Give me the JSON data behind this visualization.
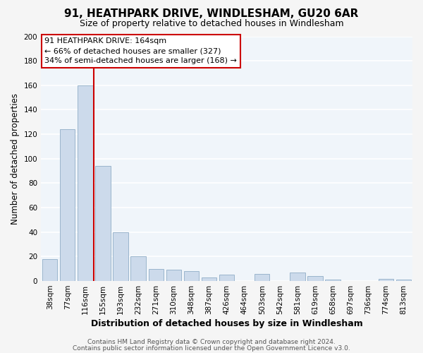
{
  "title": "91, HEATHPARK DRIVE, WINDLESHAM, GU20 6AR",
  "subtitle": "Size of property relative to detached houses in Windlesham",
  "xlabel": "Distribution of detached houses by size in Windlesham",
  "ylabel": "Number of detached properties",
  "bar_labels": [
    "38sqm",
    "77sqm",
    "116sqm",
    "155sqm",
    "193sqm",
    "232sqm",
    "271sqm",
    "310sqm",
    "348sqm",
    "387sqm",
    "426sqm",
    "464sqm",
    "503sqm",
    "542sqm",
    "581sqm",
    "619sqm",
    "658sqm",
    "697sqm",
    "736sqm",
    "774sqm",
    "813sqm"
  ],
  "bar_values": [
    18,
    124,
    160,
    94,
    40,
    20,
    10,
    9,
    8,
    3,
    5,
    0,
    6,
    0,
    7,
    4,
    1,
    0,
    0,
    2,
    1
  ],
  "bar_color": "#ccdaeb",
  "bar_edge_color": "#9ab5cc",
  "vline_x_idx": 3,
  "vline_color": "#cc0000",
  "annotation_title": "91 HEATHPARK DRIVE: 164sqm",
  "annotation_line1": "← 66% of detached houses are smaller (327)",
  "annotation_line2": "34% of semi-detached houses are larger (168) →",
  "annotation_box_facecolor": "white",
  "annotation_box_edgecolor": "#cc0000",
  "ylim": [
    0,
    200
  ],
  "yticks": [
    0,
    20,
    40,
    60,
    80,
    100,
    120,
    140,
    160,
    180,
    200
  ],
  "footer1": "Contains HM Land Registry data © Crown copyright and database right 2024.",
  "footer2": "Contains public sector information licensed under the Open Government Licence v3.0.",
  "fig_facecolor": "#f5f5f5",
  "plot_facecolor": "#f0f5fa",
  "grid_color": "white",
  "title_fontsize": 11,
  "subtitle_fontsize": 9,
  "tick_fontsize": 7.5,
  "ylabel_fontsize": 8.5,
  "xlabel_fontsize": 9
}
